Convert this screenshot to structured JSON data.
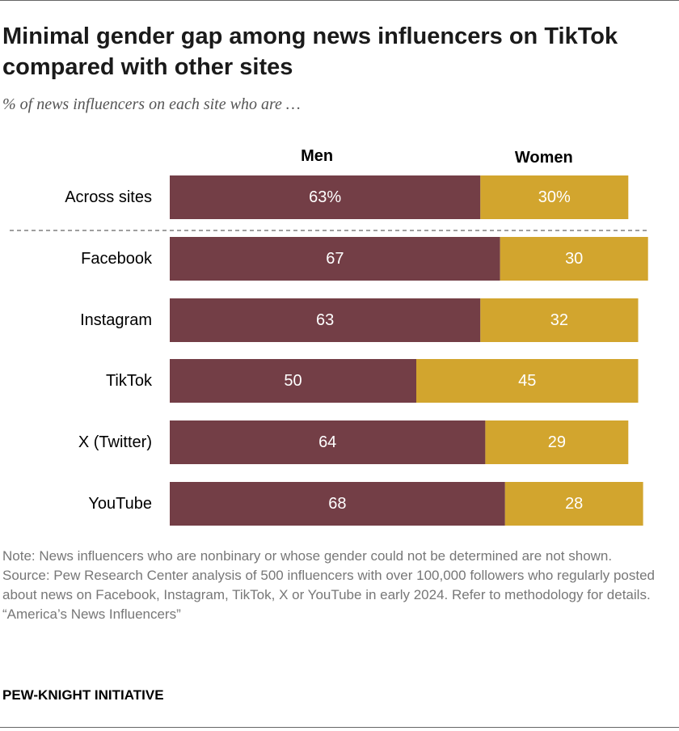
{
  "title": "Minimal gender gap among news influencers on TikTok compared with other sites",
  "subtitle": "% of news influencers on each site who are …",
  "colors": {
    "men": "#733E46",
    "women": "#D2A52E"
  },
  "chart_data": {
    "type": "bar",
    "orientation": "horizontal",
    "stacked": true,
    "categories": [
      "Across sites",
      "Facebook",
      "Instagram",
      "TikTok",
      "X (Twitter)",
      "YouTube"
    ],
    "series": [
      {
        "name": "Men",
        "values": [
          63,
          67,
          63,
          50,
          64,
          68
        ],
        "labels": [
          "63%",
          "67",
          "63",
          "50",
          "64",
          "68"
        ]
      },
      {
        "name": "Women",
        "values": [
          30,
          30,
          32,
          45,
          29,
          28
        ],
        "labels": [
          "30%",
          "30",
          "32",
          "45",
          "29",
          "28"
        ]
      }
    ],
    "xlim": [
      0,
      100
    ],
    "grid": false,
    "legend": "top"
  },
  "notes": {
    "note": "Note: News influencers who are nonbinary or whose gender could not be determined are not shown.",
    "source": "Source: Pew Research Center analysis of 500 influencers with over 100,000 followers who regularly posted about news on Facebook, Instagram, TikTok, X or YouTube in early 2024. Refer to methodology for details.",
    "report": "“America’s News Influencers”"
  },
  "brand": "PEW-KNIGHT INITIATIVE"
}
